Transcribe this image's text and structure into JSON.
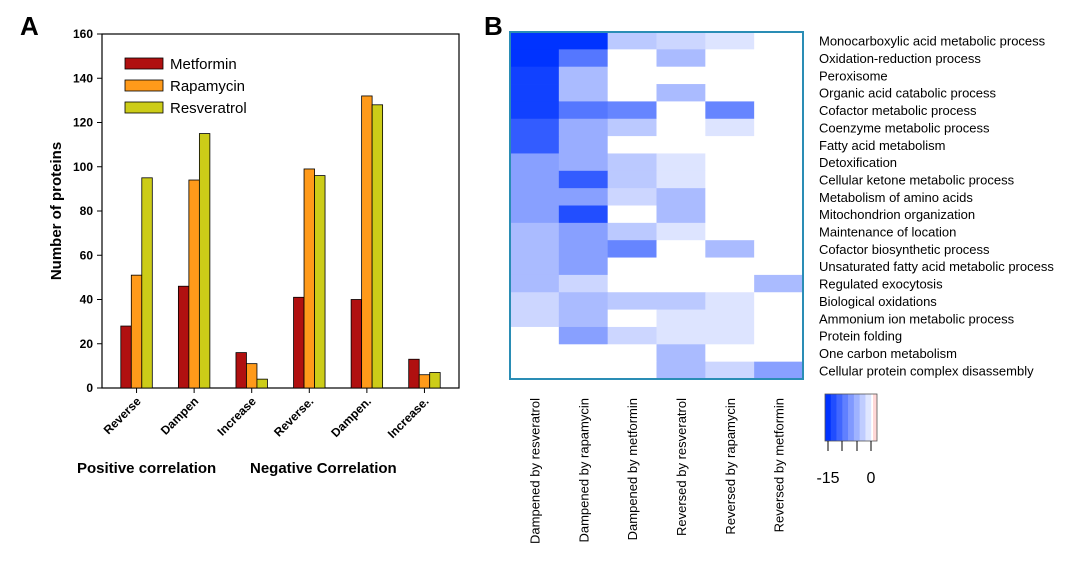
{
  "panels": {
    "a_label": "A",
    "b_label": "B"
  },
  "chart_data": [
    {
      "panel": "A",
      "type": "bar",
      "categories": [
        "Reverse",
        "Dampen",
        "Increase",
        "Reverse.",
        "Dampen.",
        "Increase."
      ],
      "series": [
        {
          "name": "Metformin",
          "color": "#b01010",
          "values": [
            28,
            46,
            16,
            41,
            40,
            13
          ]
        },
        {
          "name": "Rapamycin",
          "color": "#ff9a1a",
          "values": [
            51,
            94,
            11,
            99,
            132,
            6
          ]
        },
        {
          "name": "Resveratrol",
          "color": "#cccc18",
          "values": [
            95,
            115,
            4,
            96,
            128,
            7
          ]
        }
      ],
      "ylabel": "Number of proteins",
      "ylim": [
        0,
        160
      ],
      "yticks": [
        0,
        20,
        40,
        60,
        80,
        100,
        120,
        140,
        160
      ],
      "group_labels": [
        "Positive correlation",
        "Negative Correlation"
      ],
      "legend_position": "top-left",
      "grid": false
    },
    {
      "panel": "B",
      "type": "heatmap",
      "columns": [
        "Dampened by resveratrol",
        "Dampened by rapamycin",
        "Dampened by metformin",
        "Reversed by resveratrol",
        "Reversed by rapamycin",
        "Reversed by metformin"
      ],
      "rows": [
        "Monocarboxylic acid metabolic process",
        "Oxidation-reduction process",
        "Peroxisome",
        "Organic acid catabolic process",
        "Cofactor metabolic process",
        "Coenzyme metabolic process",
        "Fatty acid metabolism",
        "Detoxification",
        "Cellular ketone metabolic process",
        "Metabolism of amino acids",
        "Mitochondrion organization",
        "Maintenance of location",
        "Cofactor biosynthetic process",
        "Unsaturated fatty acid metabolic process",
        "Regulated exocytosis",
        "Biological oxidations",
        "Ammonium ion metabolic process",
        "Protein folding",
        "One carbon metabolism",
        "Cellular protein complex disassembly"
      ],
      "values": [
        [
          -15,
          -15,
          -4,
          -3,
          -2,
          0
        ],
        [
          -15,
          -10,
          0,
          -5,
          0,
          0
        ],
        [
          -14,
          -5,
          0,
          0,
          0,
          0
        ],
        [
          -14,
          -5,
          0,
          -5,
          0,
          0
        ],
        [
          -14,
          -10,
          -9,
          0,
          -9,
          0
        ],
        [
          -12,
          -6,
          -4,
          0,
          -2,
          0
        ],
        [
          -12,
          -6,
          0,
          0,
          0,
          0
        ],
        [
          -7,
          -6,
          -4,
          -2,
          0,
          0
        ],
        [
          -7,
          -12,
          -4,
          -2,
          0,
          0
        ],
        [
          -7,
          -7,
          -3,
          -5,
          0,
          0
        ],
        [
          -7,
          -13,
          0,
          -5,
          0,
          0
        ],
        [
          -5,
          -7,
          -4,
          -2,
          0,
          0
        ],
        [
          -5,
          -7,
          -9,
          0,
          -5,
          0
        ],
        [
          -5,
          -7,
          0,
          0,
          0,
          0
        ],
        [
          -5,
          -3,
          0,
          0,
          0,
          -5
        ],
        [
          -3,
          -5,
          -4,
          -4,
          -2,
          0
        ],
        [
          -3,
          -5,
          0,
          -2,
          -2,
          0
        ],
        [
          0,
          -7,
          -3,
          -2,
          -2,
          0
        ],
        [
          0,
          0,
          0,
          -5,
          0,
          0
        ],
        [
          0,
          0,
          0,
          -5,
          -3,
          -7
        ]
      ],
      "colorbar": {
        "min_label": "-15",
        "max_label": "0",
        "min": -15,
        "max": 0,
        "min_color": "#0033ff",
        "max_color": "#ffffff"
      }
    }
  ]
}
